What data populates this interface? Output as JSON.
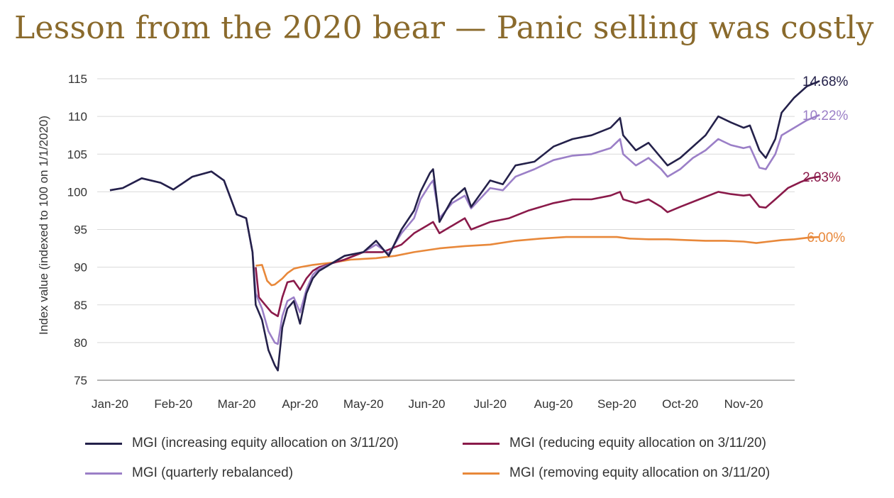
{
  "title": "Lesson from the 2020 bear — Panic selling was costly",
  "chart_data": {
    "type": "line",
    "title": "Lesson from the 2020 bear — Panic selling was costly",
    "xlabel": "",
    "ylabel": "Index value (indexed to 100 on 1/1/2020)",
    "ylim": [
      75,
      115
    ],
    "yticks": [
      "115",
      "110",
      "105",
      "100",
      "95",
      "90",
      "85",
      "80",
      "75"
    ],
    "xticks": [
      "Jan-20",
      "Feb-20",
      "Mar-20",
      "Apr-20",
      "May-20",
      "Jun-20",
      "Jul-20",
      "Aug-20",
      "Sep-20",
      "Oct-20",
      "Nov-20"
    ],
    "grid": "horizontal",
    "legend": "bottom",
    "series": [
      {
        "name": "MGI (increasing equity allocation on 3/11/20)",
        "color": "#24214a",
        "end_label": "14.68%",
        "points": [
          [
            0,
            100.2
          ],
          [
            0.2,
            100.5
          ],
          [
            0.5,
            101.8
          ],
          [
            0.8,
            101.2
          ],
          [
            1.0,
            100.3
          ],
          [
            1.3,
            102.0
          ],
          [
            1.6,
            102.7
          ],
          [
            1.8,
            101.5
          ],
          [
            2.0,
            97.0
          ],
          [
            2.15,
            96.5
          ],
          [
            2.25,
            92.0
          ],
          [
            2.3,
            85.0
          ],
          [
            2.4,
            83.0
          ],
          [
            2.5,
            79.0
          ],
          [
            2.6,
            77.0
          ],
          [
            2.65,
            76.3
          ],
          [
            2.72,
            82.0
          ],
          [
            2.8,
            84.5
          ],
          [
            2.9,
            85.5
          ],
          [
            3.0,
            82.5
          ],
          [
            3.1,
            86.5
          ],
          [
            3.2,
            88.5
          ],
          [
            3.3,
            89.5
          ],
          [
            3.5,
            90.5
          ],
          [
            3.7,
            91.5
          ],
          [
            4.0,
            92.0
          ],
          [
            4.2,
            93.5
          ],
          [
            4.4,
            91.5
          ],
          [
            4.6,
            95.0
          ],
          [
            4.8,
            97.5
          ],
          [
            4.9,
            100.0
          ],
          [
            5.05,
            102.5
          ],
          [
            5.1,
            103.0
          ],
          [
            5.2,
            96.0
          ],
          [
            5.4,
            99.0
          ],
          [
            5.6,
            100.5
          ],
          [
            5.7,
            98.0
          ],
          [
            6.0,
            101.5
          ],
          [
            6.2,
            101.0
          ],
          [
            6.4,
            103.5
          ],
          [
            6.7,
            104.0
          ],
          [
            7.0,
            106.0
          ],
          [
            7.3,
            107.0
          ],
          [
            7.6,
            107.5
          ],
          [
            7.9,
            108.5
          ],
          [
            8.05,
            109.8
          ],
          [
            8.1,
            107.5
          ],
          [
            8.3,
            105.5
          ],
          [
            8.5,
            106.5
          ],
          [
            8.7,
            104.5
          ],
          [
            8.8,
            103.5
          ],
          [
            9.0,
            104.5
          ],
          [
            9.2,
            106.0
          ],
          [
            9.4,
            107.5
          ],
          [
            9.6,
            110.0
          ],
          [
            9.8,
            109.2
          ],
          [
            10.0,
            108.5
          ],
          [
            10.1,
            108.8
          ],
          [
            10.25,
            105.5
          ],
          [
            10.35,
            104.5
          ],
          [
            10.5,
            107.0
          ],
          [
            10.6,
            110.5
          ],
          [
            10.8,
            112.5
          ],
          [
            11.0,
            114.0
          ],
          [
            11.2,
            114.7
          ]
        ]
      },
      {
        "name": "MGI (quarterly rebalanced)",
        "color": "#9b7fc7",
        "end_label": "10.22%",
        "points": [
          [
            0,
            100.2
          ],
          [
            0.2,
            100.5
          ],
          [
            0.5,
            101.8
          ],
          [
            0.8,
            101.2
          ],
          [
            1.0,
            100.3
          ],
          [
            1.3,
            102.0
          ],
          [
            1.6,
            102.7
          ],
          [
            1.8,
            101.5
          ],
          [
            2.0,
            97.0
          ],
          [
            2.15,
            96.5
          ],
          [
            2.25,
            92.0
          ],
          [
            2.3,
            86.5
          ],
          [
            2.4,
            84.5
          ],
          [
            2.5,
            81.5
          ],
          [
            2.6,
            80.0
          ],
          [
            2.65,
            79.8
          ],
          [
            2.72,
            83.5
          ],
          [
            2.8,
            85.5
          ],
          [
            2.9,
            86.0
          ],
          [
            3.0,
            84.0
          ],
          [
            3.1,
            87.0
          ],
          [
            3.2,
            89.0
          ],
          [
            3.3,
            89.8
          ],
          [
            3.5,
            90.5
          ],
          [
            3.7,
            91.5
          ],
          [
            4.0,
            92.0
          ],
          [
            4.2,
            93.0
          ],
          [
            4.4,
            91.8
          ],
          [
            4.6,
            94.5
          ],
          [
            4.8,
            96.5
          ],
          [
            4.9,
            99.0
          ],
          [
            5.05,
            101.0
          ],
          [
            5.1,
            101.5
          ],
          [
            5.2,
            96.5
          ],
          [
            5.4,
            98.5
          ],
          [
            5.6,
            99.5
          ],
          [
            5.7,
            97.8
          ],
          [
            6.0,
            100.5
          ],
          [
            6.2,
            100.2
          ],
          [
            6.4,
            102.0
          ],
          [
            6.7,
            103.0
          ],
          [
            7.0,
            104.2
          ],
          [
            7.3,
            104.8
          ],
          [
            7.6,
            105.0
          ],
          [
            7.9,
            105.8
          ],
          [
            8.05,
            107.0
          ],
          [
            8.1,
            105.0
          ],
          [
            8.3,
            103.5
          ],
          [
            8.5,
            104.5
          ],
          [
            8.7,
            103.0
          ],
          [
            8.8,
            102.0
          ],
          [
            9.0,
            103.0
          ],
          [
            9.2,
            104.5
          ],
          [
            9.4,
            105.5
          ],
          [
            9.6,
            107.0
          ],
          [
            9.8,
            106.2
          ],
          [
            10.0,
            105.8
          ],
          [
            10.1,
            106.0
          ],
          [
            10.25,
            103.2
          ],
          [
            10.35,
            103.0
          ],
          [
            10.5,
            105.0
          ],
          [
            10.6,
            107.5
          ],
          [
            10.8,
            108.5
          ],
          [
            11.0,
            109.5
          ],
          [
            11.2,
            110.2
          ]
        ]
      },
      {
        "name": "MGI (reducing equity allocation on 3/11/20)",
        "color": "#8a1a4a",
        "end_label": "2.03%",
        "points": [
          [
            2.3,
            90.0
          ],
          [
            2.35,
            86.0
          ],
          [
            2.45,
            85.0
          ],
          [
            2.55,
            84.0
          ],
          [
            2.65,
            83.5
          ],
          [
            2.72,
            86.0
          ],
          [
            2.8,
            88.0
          ],
          [
            2.9,
            88.2
          ],
          [
            3.0,
            87.0
          ],
          [
            3.1,
            88.5
          ],
          [
            3.2,
            89.5
          ],
          [
            3.3,
            90.0
          ],
          [
            3.5,
            90.5
          ],
          [
            3.7,
            91.0
          ],
          [
            4.0,
            92.0
          ],
          [
            4.3,
            92.0
          ],
          [
            4.6,
            93.0
          ],
          [
            4.8,
            94.5
          ],
          [
            5.0,
            95.5
          ],
          [
            5.1,
            96.0
          ],
          [
            5.2,
            94.5
          ],
          [
            5.4,
            95.5
          ],
          [
            5.6,
            96.5
          ],
          [
            5.7,
            95.0
          ],
          [
            6.0,
            96.0
          ],
          [
            6.3,
            96.5
          ],
          [
            6.6,
            97.5
          ],
          [
            7.0,
            98.5
          ],
          [
            7.3,
            99.0
          ],
          [
            7.6,
            99.0
          ],
          [
            7.9,
            99.5
          ],
          [
            8.05,
            100.0
          ],
          [
            8.1,
            99.0
          ],
          [
            8.3,
            98.5
          ],
          [
            8.5,
            99.0
          ],
          [
            8.7,
            98.0
          ],
          [
            8.8,
            97.3
          ],
          [
            9.0,
            98.0
          ],
          [
            9.3,
            99.0
          ],
          [
            9.6,
            100.0
          ],
          [
            9.8,
            99.7
          ],
          [
            10.0,
            99.5
          ],
          [
            10.1,
            99.6
          ],
          [
            10.25,
            98.0
          ],
          [
            10.35,
            97.9
          ],
          [
            10.5,
            99.0
          ],
          [
            10.7,
            100.5
          ],
          [
            10.9,
            101.3
          ],
          [
            11.05,
            101.8
          ],
          [
            11.2,
            102.03
          ]
        ]
      },
      {
        "name": "MGI (removing equity allocation on 3/11/20)",
        "color": "#e8883a",
        "end_label": "-6.00%",
        "points": [
          [
            2.3,
            90.2
          ],
          [
            2.4,
            90.3
          ],
          [
            2.48,
            88.2
          ],
          [
            2.55,
            87.6
          ],
          [
            2.6,
            87.7
          ],
          [
            2.72,
            88.5
          ],
          [
            2.8,
            89.2
          ],
          [
            2.9,
            89.8
          ],
          [
            3.0,
            90.0
          ],
          [
            3.2,
            90.3
          ],
          [
            3.5,
            90.6
          ],
          [
            3.8,
            91.0
          ],
          [
            4.2,
            91.2
          ],
          [
            4.5,
            91.5
          ],
          [
            4.8,
            92.0
          ],
          [
            5.2,
            92.5
          ],
          [
            5.6,
            92.8
          ],
          [
            6.0,
            93.0
          ],
          [
            6.4,
            93.5
          ],
          [
            6.8,
            93.8
          ],
          [
            7.2,
            94.0
          ],
          [
            7.6,
            94.0
          ],
          [
            7.8,
            94.0
          ],
          [
            8.0,
            94.0
          ],
          [
            8.2,
            93.8
          ],
          [
            8.5,
            93.7
          ],
          [
            8.8,
            93.7
          ],
          [
            9.1,
            93.6
          ],
          [
            9.4,
            93.5
          ],
          [
            9.7,
            93.5
          ],
          [
            10.0,
            93.4
          ],
          [
            10.2,
            93.2
          ],
          [
            10.4,
            93.4
          ],
          [
            10.6,
            93.6
          ],
          [
            10.8,
            93.7
          ],
          [
            11.0,
            93.9
          ],
          [
            11.2,
            94.0
          ]
        ]
      }
    ]
  },
  "legend": {
    "items": [
      {
        "label": "MGI (increasing equity allocation on 3/11/20)",
        "color": "#24214a"
      },
      {
        "label": "MGI (reducing equity allocation on 3/11/20)",
        "color": "#8a1a4a"
      },
      {
        "label": "MGI (quarterly rebalanced)",
        "color": "#9b7fc7"
      },
      {
        "label": "MGI (removing equity allocation on 3/11/20)",
        "color": "#e8883a"
      }
    ]
  }
}
